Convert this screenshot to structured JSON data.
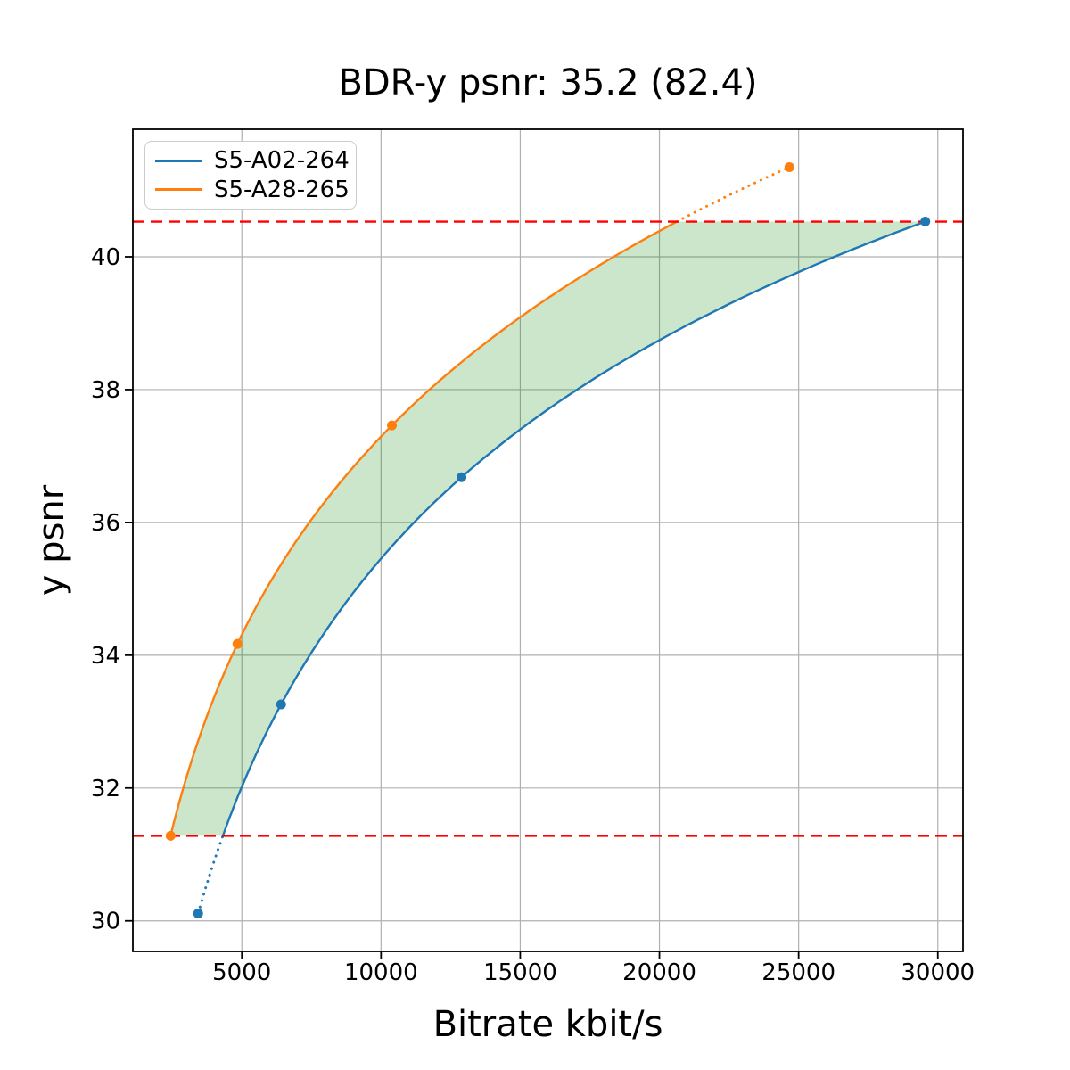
{
  "title": "BDR-y psnr: 35.2 (82.4)",
  "chart_data": {
    "type": "line",
    "title": "BDR-y psnr: 35.2 (82.4)",
    "xlabel": "Bitrate kbit/s",
    "ylabel": "y psnr",
    "xlim": [
      1085,
      30905
    ],
    "ylim": [
      29.54,
      41.92
    ],
    "xticks": [
      5000,
      10000,
      15000,
      20000,
      25000,
      30000
    ],
    "xtick_labels": [
      "5000",
      "10000",
      "15000",
      "20000",
      "25000",
      "30000"
    ],
    "yticks": [
      30,
      32,
      34,
      36,
      38,
      40
    ],
    "ytick_labels": [
      "30",
      "32",
      "34",
      "36",
      "38",
      "40"
    ],
    "grid": true,
    "grid_color": "#b0b0b0",
    "spine_color": "#000000",
    "legend_position": "upper-left",
    "interpolation": "pchip-on-log-rate",
    "bdr_value": 35.2,
    "bdr_secondary_value": 82.4,
    "series": [
      {
        "name": "S5-A02-264",
        "color": "#1f77b4",
        "marker": "circle",
        "points": [
          [
            3430,
            30.11
          ],
          [
            6410,
            33.26
          ],
          [
            12890,
            36.68
          ],
          [
            29550,
            40.53
          ]
        ]
      },
      {
        "name": "S5-A28-265",
        "color": "#ff7f0e",
        "marker": "circle",
        "points": [
          [
            2440,
            31.28
          ],
          [
            4840,
            34.17
          ],
          [
            10390,
            37.46
          ],
          [
            24670,
            41.35
          ]
        ]
      }
    ],
    "bd_bounds": {
      "lower_psnr": 31.28,
      "upper_psnr": 40.53,
      "line_color": "#ff0000",
      "line_style": "dashed"
    },
    "fill_between": {
      "color": "#008000",
      "opacity": 0.2
    }
  }
}
